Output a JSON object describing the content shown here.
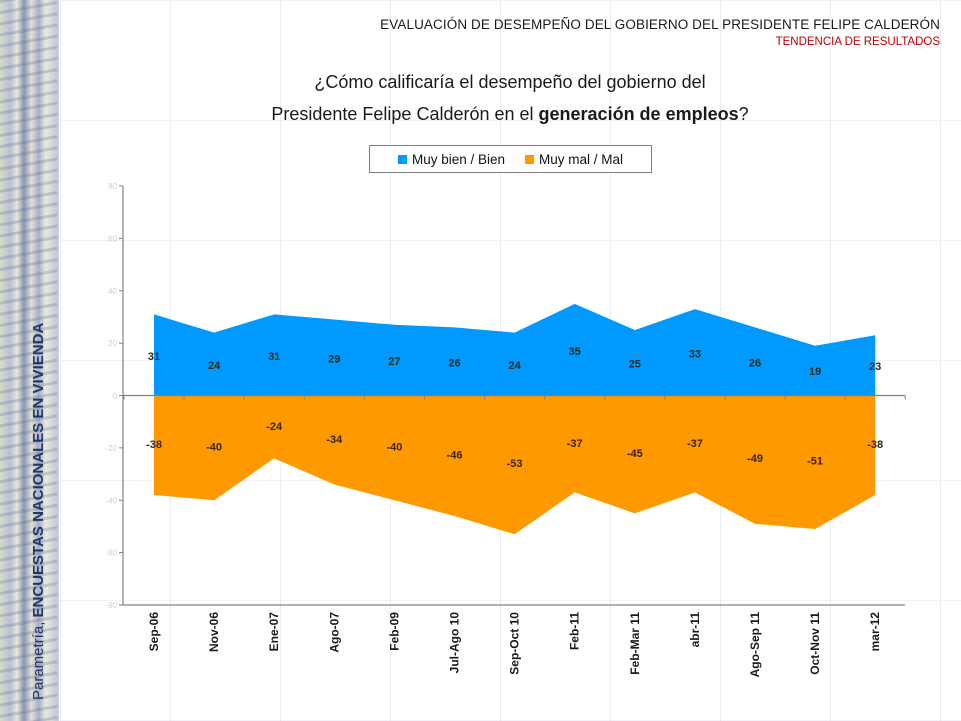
{
  "header": {
    "title": "EVALUACIÓN DE DESEMPEÑO DEL GOBIERNO DEL PRESIDENTE  FELIPE CALDERÓN",
    "subtitle": "TENDENCIA DE RESULTADOS"
  },
  "sidebar": {
    "prefix": "Parametría, ",
    "bold": "ENCUESTAS NACIONALES EN VIVIENDA"
  },
  "question": {
    "line1": "¿Cómo calificaría el desempeño del gobierno del",
    "line2_prefix": "Presidente Felipe Calderón en el ",
    "line2_bold": "generación de empleos",
    "line2_suffix": "?"
  },
  "legend": {
    "items": [
      {
        "label": "Muy bien / Bien",
        "color": "#0099ff"
      },
      {
        "label": "Muy mal / Mal",
        "color": "#ff9900"
      }
    ]
  },
  "chart_data": {
    "type": "area",
    "title": "¿Cómo calificaría el desempeño del gobierno del Presidente Felipe Calderón en el generación de empleos?",
    "xlabel": "",
    "ylabel": "",
    "categories": [
      "Sep-06",
      "Nov-06",
      "Ene-07",
      "Ago-07",
      "Feb-09",
      "Jul-Ago 10",
      "Sep-Oct 10",
      "Feb-11",
      "Feb-Mar 11",
      "abr-11",
      "Ago-Sep 11",
      "Oct-Nov 11",
      "mar-12"
    ],
    "series": [
      {
        "name": "Muy bien / Bien",
        "color": "#0099ff",
        "values": [
          31,
          24,
          31,
          29,
          27,
          26,
          24,
          35,
          25,
          33,
          26,
          19,
          23
        ]
      },
      {
        "name": "Muy mal / Mal",
        "color": "#ff9900",
        "values": [
          -38,
          -40,
          -24,
          -34,
          -40,
          -46,
          -53,
          -37,
          -45,
          -37,
          -49,
          -51,
          -38
        ]
      }
    ],
    "ylim": [
      -80,
      80
    ],
    "yticks": [
      80,
      60,
      40,
      20,
      0,
      -20,
      -40,
      -60,
      -80
    ],
    "legend_position": "top-center",
    "grid": false,
    "data_labels": true
  }
}
